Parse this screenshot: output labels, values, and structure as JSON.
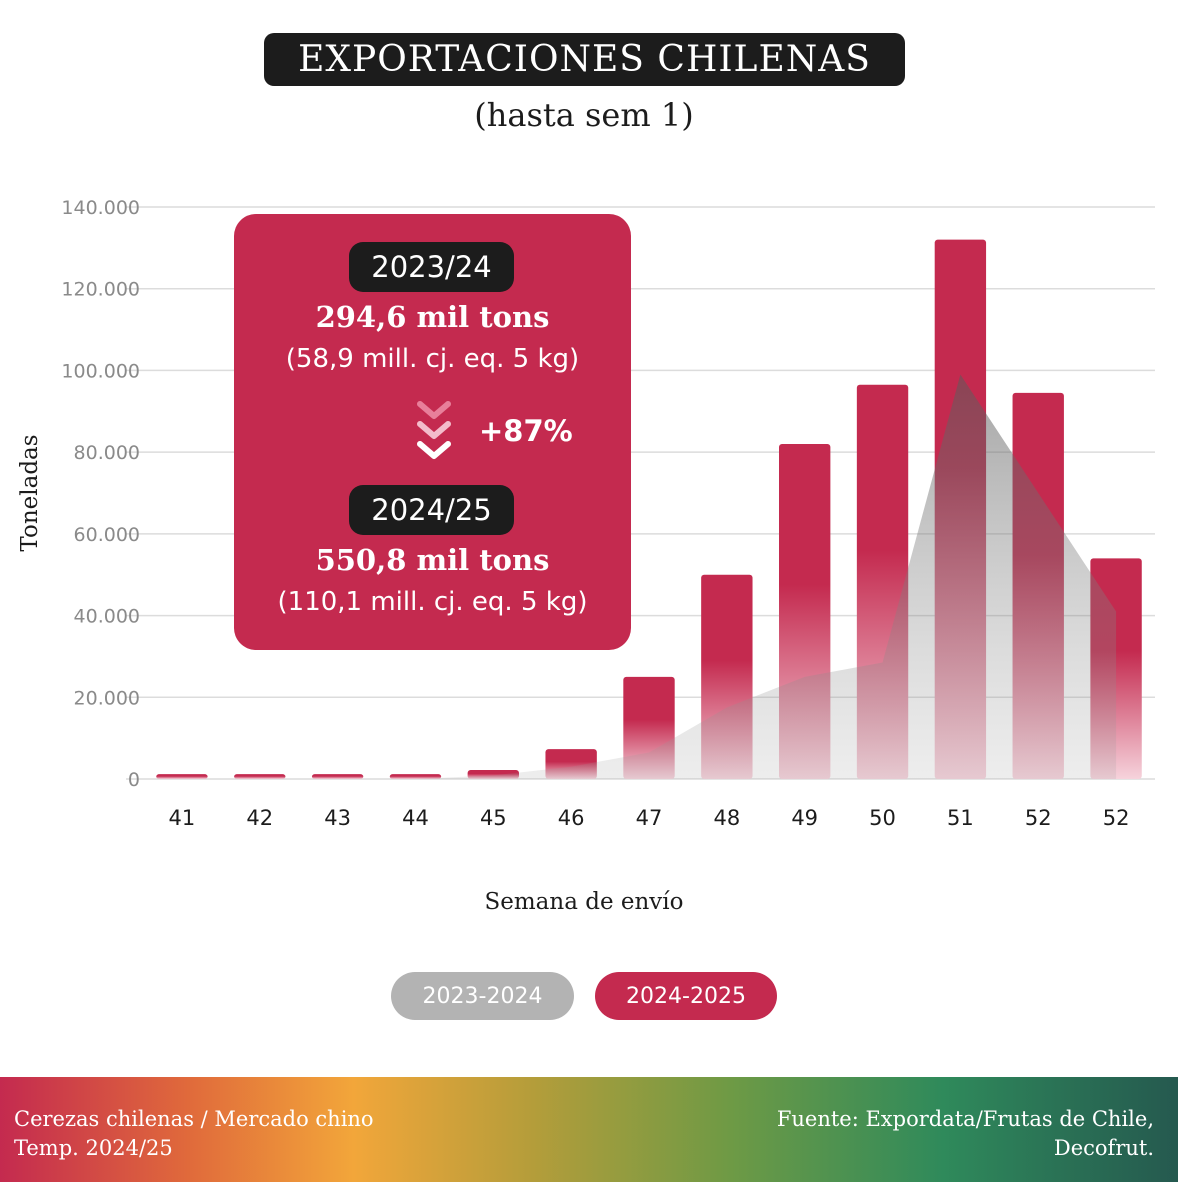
{
  "header": {
    "title": "EXPORTACIONES CHILENAS",
    "subtitle": "(hasta sem 1)"
  },
  "callout": {
    "season_a": "2023/24",
    "tons_a": "294,6 mil tons",
    "boxes_a": "(58,9 mill. cj. eq. 5 kg)",
    "change": "+87%",
    "season_b": "2024/25",
    "tons_b": "550,8 mil tons",
    "boxes_b": "(110,1 mill. cj. eq. 5 kg)"
  },
  "legend": {
    "series_a": "2023-2024",
    "series_b": "2024-2025"
  },
  "footer": {
    "left_line1": "Cerezas chilenas / Mercado chino",
    "left_line2": "Temp. 2024/25",
    "right_line1": "Fuente: Expordata/Frutas de Chile,",
    "right_line2": "Decofrut."
  },
  "colors": {
    "bar": "#c42a4f",
    "area": "#9e9e9e",
    "legend_grey": "#b3b3b3"
  },
  "chart_data": {
    "type": "bar",
    "categories": [
      "41",
      "42",
      "43",
      "44",
      "45",
      "46",
      "47",
      "48",
      "49",
      "50",
      "51",
      "52",
      "52"
    ],
    "xlabel": "Semana de envío",
    "ylabel": "Toneladas",
    "ylim": [
      0,
      140000
    ],
    "yticks": [
      0,
      20000,
      40000,
      60000,
      80000,
      100000,
      120000,
      140000
    ],
    "ytick_labels": [
      "0",
      "20.000",
      "40.000",
      "60.000",
      "80.000",
      "100.000",
      "120.000",
      "140.000"
    ],
    "grid": true,
    "series": [
      {
        "name": "2024-2025",
        "type": "bar",
        "values": [
          1200,
          1200,
          1200,
          1200,
          2200,
          7300,
          25000,
          50000,
          82000,
          96500,
          132000,
          94500,
          54000
        ]
      },
      {
        "name": "2023-2024",
        "type": "area",
        "values": [
          0,
          0,
          0,
          0,
          900,
          3000,
          6500,
          17500,
          25000,
          28500,
          99000,
          70000,
          41000
        ]
      }
    ]
  }
}
